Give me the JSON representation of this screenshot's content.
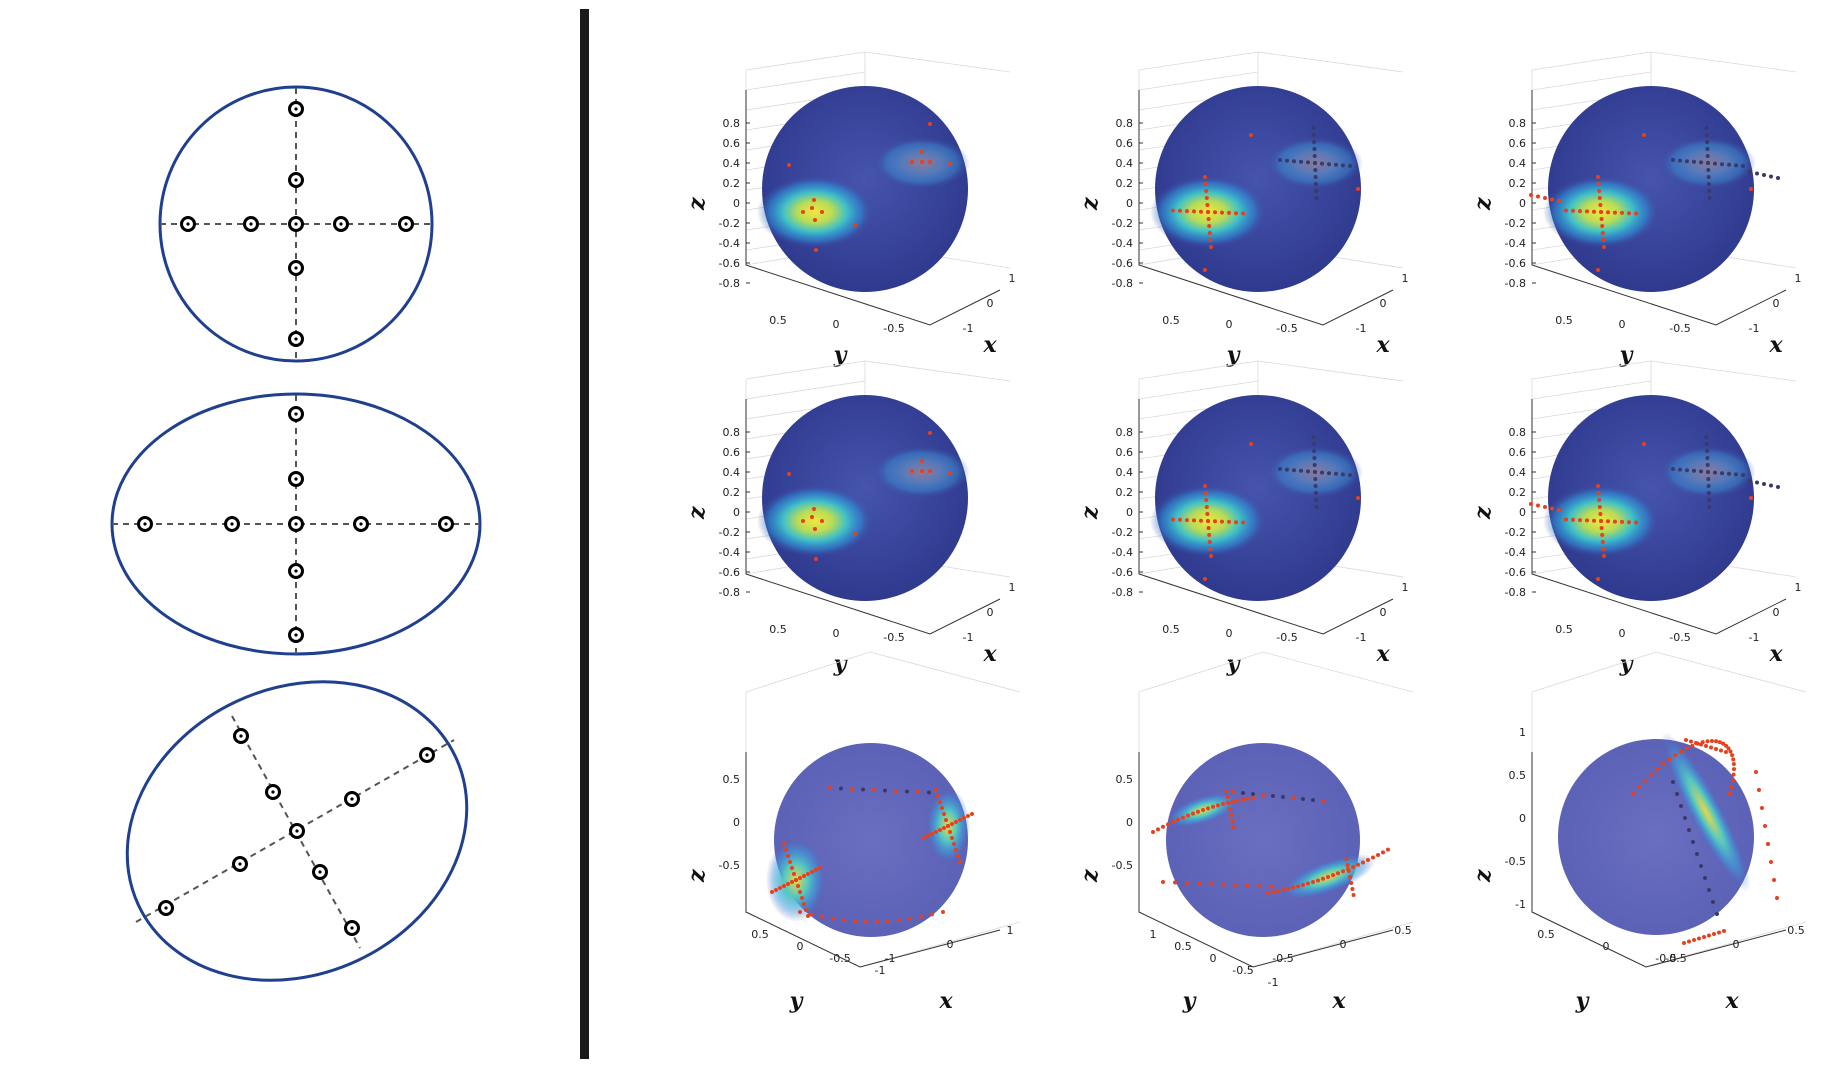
{
  "layout_description": {
    "left_schematics": [
      {
        "id": "circle",
        "shape": "circle",
        "cross": "axis-aligned",
        "markers": 9
      },
      {
        "id": "ellipse",
        "shape": "ellipse",
        "cross": "axis-aligned",
        "markers": 9
      },
      {
        "id": "rotated-ellipse",
        "shape": "ellipse",
        "cross": "rotated",
        "markers": 9
      }
    ],
    "colors": {
      "outline": "#1f3f8f",
      "dashed_axis": "#555555",
      "marker": "#000000",
      "divider": "#1a1a1a",
      "sphere_base": "#3f4aa0",
      "hot_spot": "#e6e03a",
      "dot_red": "#e8401c",
      "dot_dark": "#3a3a6a"
    }
  },
  "plots": {
    "labels": {
      "x": "x",
      "y": "y",
      "z": "z"
    },
    "row_top_mid": {
      "z_ticks": [
        "0.8",
        "0.6",
        "0.4",
        "0.2",
        "0",
        "-0.2",
        "-0.4",
        "-0.6",
        "-0.8"
      ],
      "y_ticks": [
        "0.5",
        "0",
        "-0.5"
      ],
      "x_ticks": [
        "1",
        "0",
        "-1"
      ]
    },
    "row_bottom": [
      {
        "z_ticks": [
          "0.5",
          "0",
          "-0.5"
        ],
        "y_ticks": [
          "0.5",
          "0",
          "-0.5",
          "-1"
        ],
        "x_ticks": [
          "1",
          "0",
          "-1"
        ]
      },
      {
        "z_ticks": [
          "0.5",
          "0",
          "-0.5"
        ],
        "y_ticks": [
          "1",
          "0.5",
          "0",
          "-0.5",
          "-1"
        ],
        "x_ticks": [
          "0.5",
          "0",
          "-0.5"
        ]
      },
      {
        "z_ticks": [
          "1",
          "0.5",
          "0",
          "-0.5",
          "-1"
        ],
        "y_ticks": [
          "0.5",
          "0",
          "-0.5"
        ],
        "x_ticks": [
          "0.5",
          "0",
          "-0.5"
        ]
      }
    ]
  }
}
